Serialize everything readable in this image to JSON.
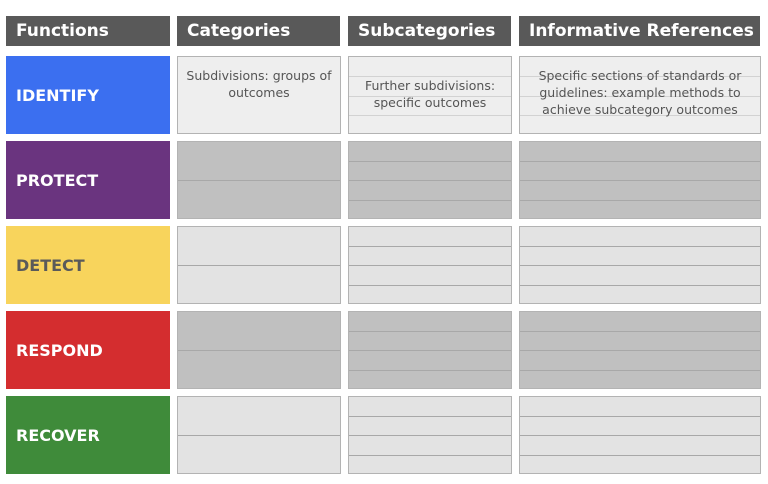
{
  "headers": {
    "functions": "Functions",
    "categories": "Categories",
    "subcategories": "Subcategories",
    "references": "Informative References"
  },
  "functions": [
    {
      "label": "IDENTIFY",
      "color": "#3b6ff0"
    },
    {
      "label": "PROTECT",
      "color": "#6a347f"
    },
    {
      "label": "DETECT",
      "color": "#f8d45c",
      "text_color": "#5a5a5a"
    },
    {
      "label": "RESPOND",
      "color": "#d42d2f"
    },
    {
      "label": "RECOVER",
      "color": "#3f8b3a"
    }
  ],
  "descriptions": {
    "categories": "Subdivisions: groups of outcomes",
    "subcategories": "Further subdivisions: specific outcomes",
    "references": "Specific sections of standards or guidelines: example methods to achieve subcategory outcomes"
  }
}
